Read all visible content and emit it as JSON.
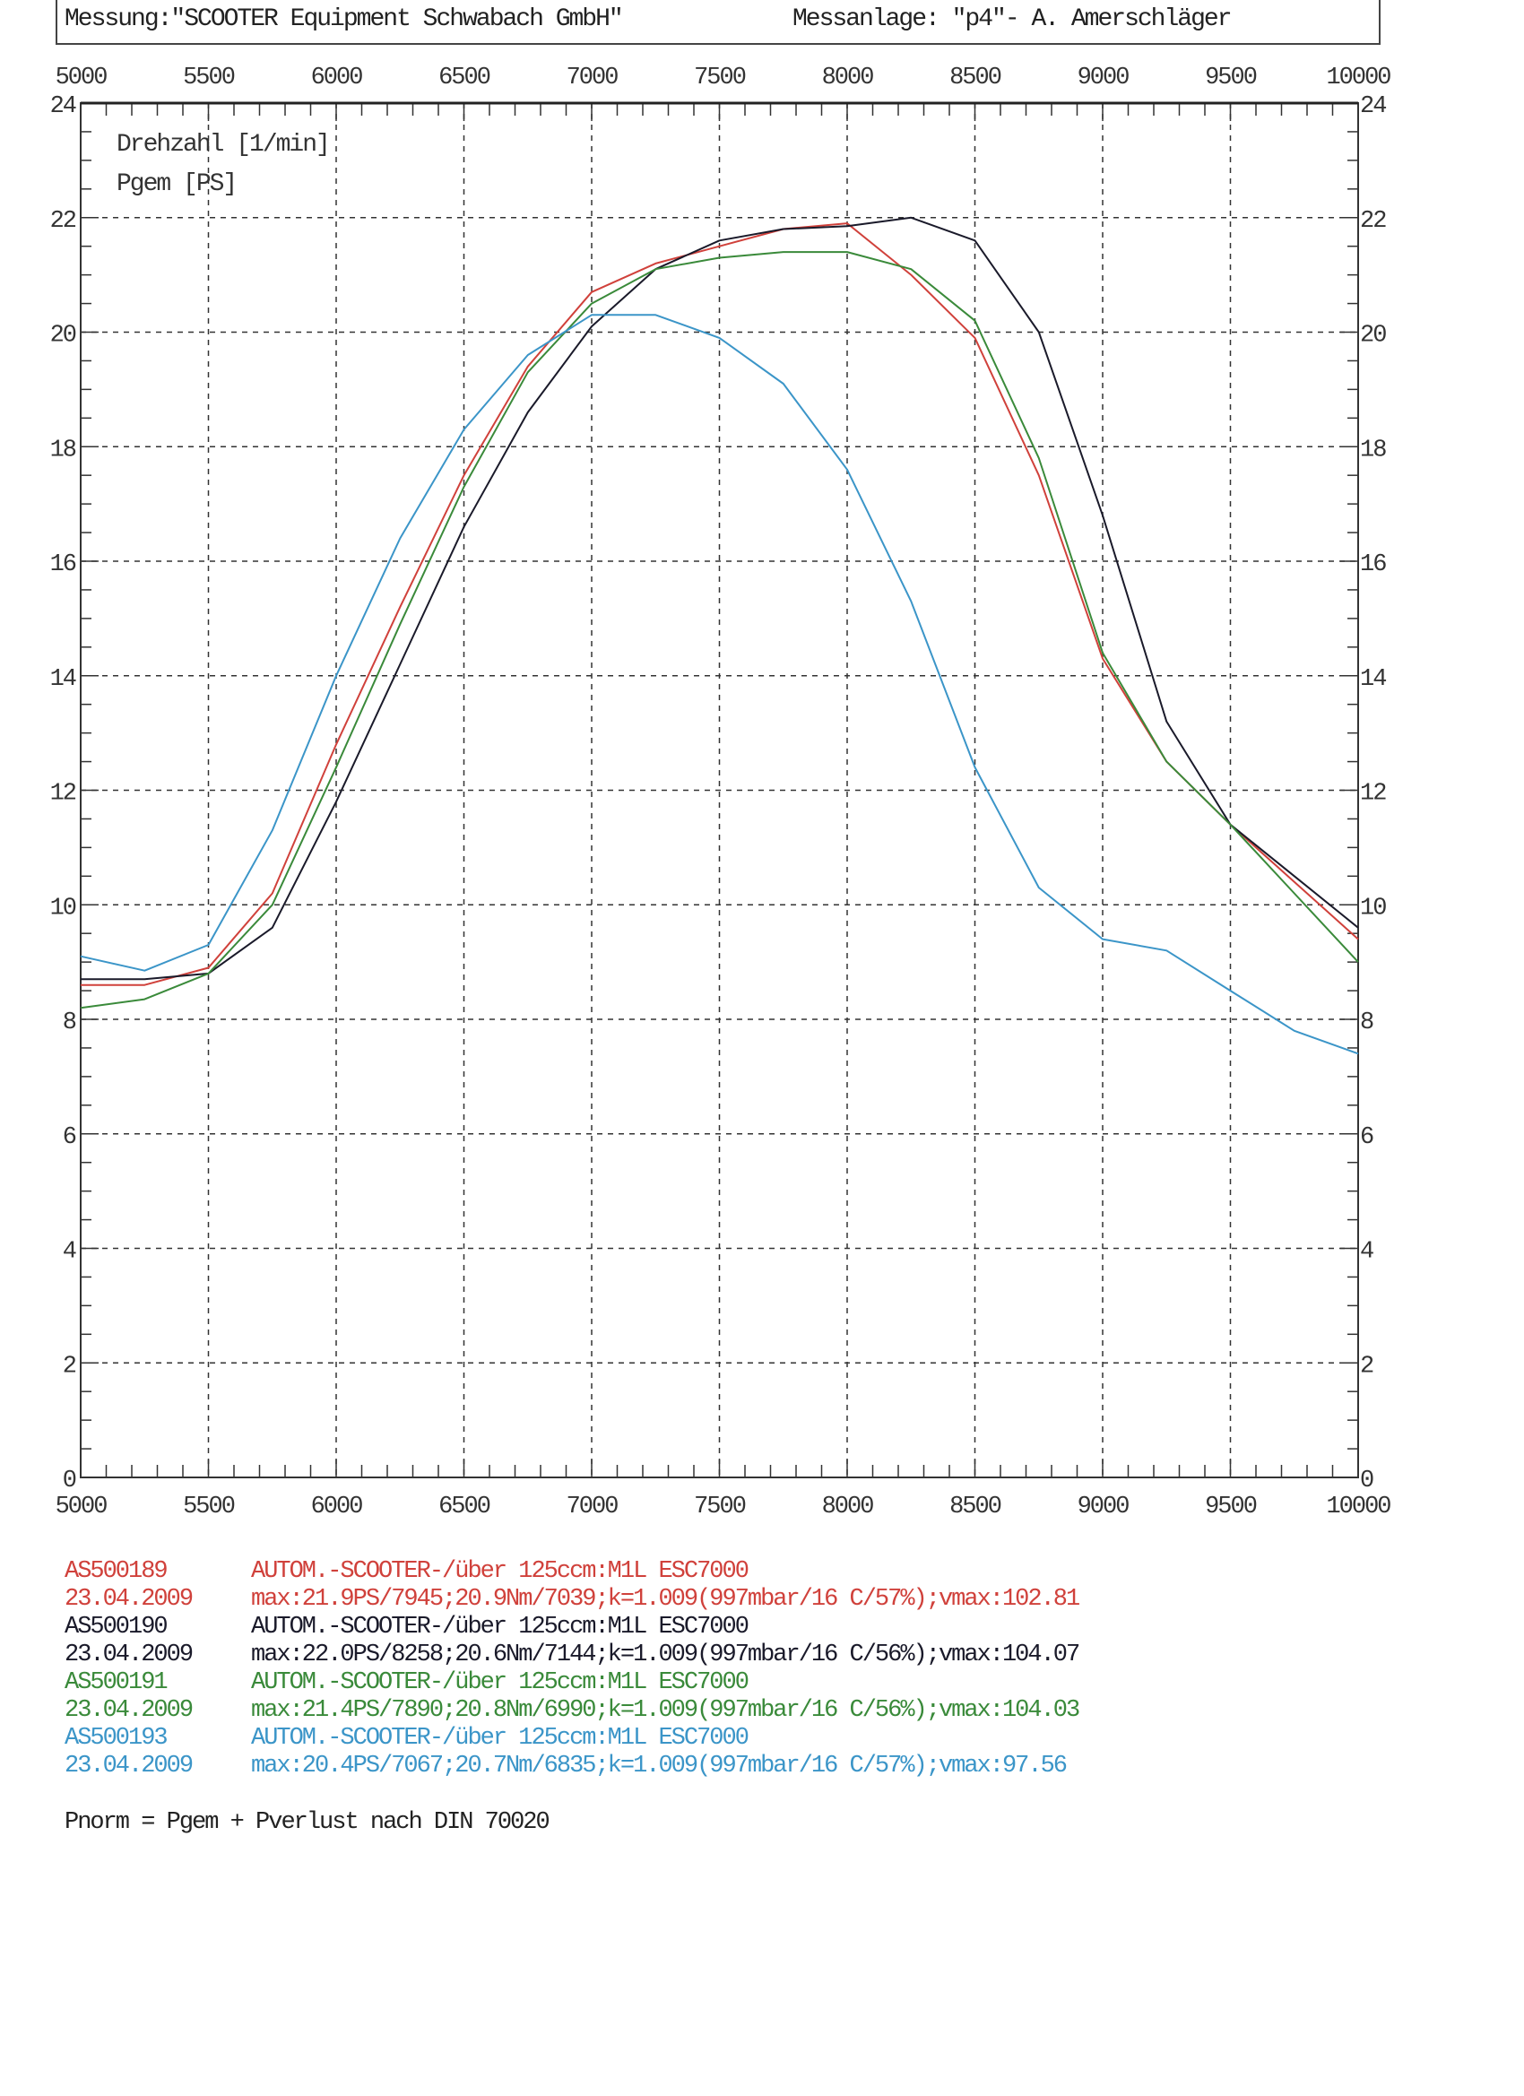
{
  "header": {
    "measurement": "Messung:\"SCOOTER Equipment Schwabach GmbH\"",
    "facility": "Messanlage: \"p4\"- A. Amerschläger"
  },
  "chart_data": {
    "type": "line",
    "title": "",
    "xlabel": "Drehzahl [1/min]",
    "ylabel": "Pgem [PS]",
    "xlim": [
      5000,
      10000
    ],
    "ylim": [
      0,
      24
    ],
    "grid": true,
    "x_ticks": [
      5000,
      5500,
      6000,
      6500,
      7000,
      7500,
      8000,
      8500,
      9000,
      9500,
      10000
    ],
    "y_ticks": [
      0,
      2,
      4,
      6,
      8,
      10,
      12,
      14,
      16,
      18,
      20,
      22,
      24
    ],
    "x": [
      5000,
      5250,
      5500,
      5750,
      6000,
      6250,
      6500,
      6750,
      7000,
      7250,
      7500,
      7750,
      8000,
      8250,
      8500,
      8750,
      9000,
      9250,
      9500,
      9750,
      10000
    ],
    "series": [
      {
        "name": "AS500189",
        "color": "#d0413b",
        "values": [
          8.6,
          8.6,
          8.9,
          10.2,
          12.8,
          15.2,
          17.5,
          19.4,
          20.7,
          21.2,
          21.5,
          21.8,
          21.9,
          21.0,
          19.9,
          17.5,
          14.3,
          12.5,
          11.4,
          10.4,
          9.4
        ]
      },
      {
        "name": "AS500190",
        "color": "#1a1a2a",
        "values": [
          8.7,
          8.7,
          8.8,
          9.6,
          11.8,
          14.2,
          16.6,
          18.6,
          20.1,
          21.1,
          21.6,
          21.8,
          21.85,
          22.0,
          21.6,
          20.0,
          16.8,
          13.2,
          11.4,
          10.5,
          9.6
        ]
      },
      {
        "name": "AS500191",
        "color": "#3a8a3a",
        "values": [
          8.2,
          8.35,
          8.8,
          10.0,
          12.4,
          14.9,
          17.3,
          19.3,
          20.5,
          21.1,
          21.3,
          21.4,
          21.4,
          21.1,
          20.2,
          17.8,
          14.4,
          12.5,
          11.4,
          10.2,
          9.0
        ]
      },
      {
        "name": "AS500193",
        "color": "#3b95c8",
        "values": [
          9.1,
          8.85,
          9.3,
          11.3,
          14.0,
          16.4,
          18.3,
          19.6,
          20.3,
          20.3,
          19.9,
          19.1,
          17.6,
          15.3,
          12.4,
          10.3,
          9.4,
          9.2,
          8.5,
          7.8,
          7.4
        ]
      }
    ]
  },
  "legend": [
    {
      "id": "AS500189",
      "desc": "AUTOM.-SCOOTER-/über 125ccm:M1L ESC7000",
      "date": "23.04.2009",
      "stats": "max:21.9PS/7945;20.9Nm/7039;k=1.009(997mbar/16 C/57%);vmax:102.81",
      "color": "#d0413b"
    },
    {
      "id": "AS500190",
      "desc": "AUTOM.-SCOOTER-/über 125ccm:M1L ESC7000",
      "date": "23.04.2009",
      "stats": "max:22.0PS/8258;20.6Nm/7144;k=1.009(997mbar/16 C/56%);vmax:104.07",
      "color": "#1a1a2a"
    },
    {
      "id": "AS500191",
      "desc": "AUTOM.-SCOOTER-/über 125ccm:M1L ESC7000",
      "date": "23.04.2009",
      "stats": "max:21.4PS/7890;20.8Nm/6990;k=1.009(997mbar/16 C/56%);vmax:104.03",
      "color": "#3a8a3a"
    },
    {
      "id": "AS500193",
      "desc": "AUTOM.-SCOOTER-/über 125ccm:M1L ESC7000",
      "date": "23.04.2009",
      "stats": "max:20.4PS/7067;20.7Nm/6835;k=1.009(997mbar/16 C/57%);vmax:97.56",
      "color": "#3b95c8"
    }
  ],
  "footnote": "Pnorm = Pgem + Pverlust nach DIN 70020"
}
